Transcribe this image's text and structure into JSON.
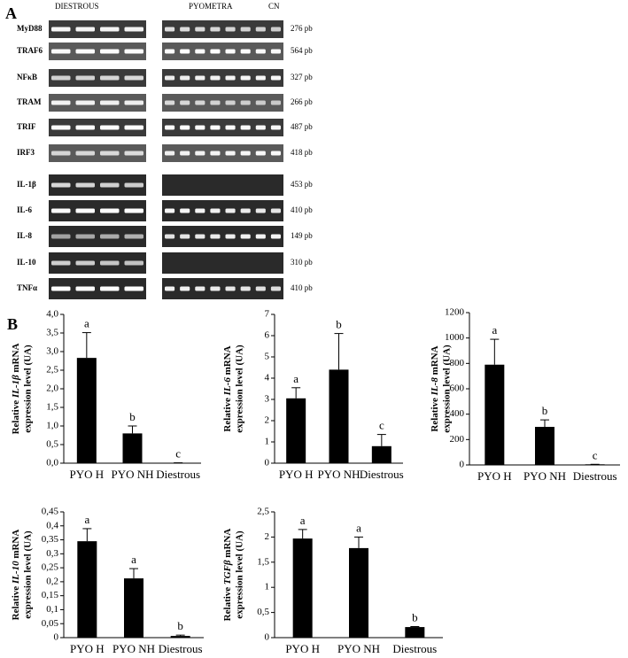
{
  "panels": {
    "a": "A",
    "b": "B"
  },
  "gel": {
    "groups": [
      "DIESTROUS",
      "PYOMETRA",
      "CN"
    ],
    "rows": [
      {
        "gene": "MyD88",
        "size": "276 pb"
      },
      {
        "gene": "TRAF6",
        "size": "564 pb"
      },
      {
        "gene": "NFκB",
        "size": "327 pb"
      },
      {
        "gene": "TRAM",
        "size": "266 pb"
      },
      {
        "gene": "TRIF",
        "size": "487 pb"
      },
      {
        "gene": "IRF3",
        "size": "418 pb"
      },
      {
        "gene": "IL-1β",
        "size": "453 pb"
      },
      {
        "gene": "IL-6",
        "size": "410 pb"
      },
      {
        "gene": "IL-8",
        "size": "149 pb"
      },
      {
        "gene": "IL-10",
        "size": "310 pb"
      },
      {
        "gene": "TNFα",
        "size": "410 pb"
      }
    ]
  },
  "chart_data": [
    {
      "type": "bar",
      "ylabel": {
        "pre": "Relative ",
        "gene": "IL-1β",
        "post": " mRNA",
        "line2": "expression level (UA)"
      },
      "categories": [
        "PYO H",
        "PYO NH",
        "Diestrous"
      ],
      "values": [
        2.83,
        0.8,
        0.01
      ],
      "errors": [
        0.68,
        0.2,
        0
      ],
      "annotations": [
        "a",
        "b",
        "c"
      ],
      "color": "#000000",
      "ylim": [
        0,
        4
      ],
      "yticks": [
        {
          "value": 0,
          "label": "0,0"
        },
        {
          "value": 0.5,
          "label": "0,5"
        },
        {
          "value": 1,
          "label": "1,0"
        },
        {
          "value": 1.5,
          "label": "1,5"
        },
        {
          "value": 2,
          "label": "2,0"
        },
        {
          "value": 2.5,
          "label": "2,5"
        },
        {
          "value": 3,
          "label": "3,0"
        },
        {
          "value": 3.5,
          "label": "3,5"
        },
        {
          "value": 4,
          "label": "4,0"
        }
      ]
    },
    {
      "type": "bar",
      "ylabel": {
        "pre": "Relative ",
        "gene": "IL-6",
        "post": " mRNA",
        "line2": "expression level (UA)"
      },
      "categories": [
        "PYO H",
        "PYO NH",
        "Diestrous"
      ],
      "values": [
        3.05,
        4.4,
        0.8
      ],
      "errors": [
        0.5,
        1.7,
        0.55
      ],
      "annotations": [
        "a",
        "b",
        "c"
      ],
      "color": "#000000",
      "ylim": [
        0,
        7
      ],
      "yticks": [
        0,
        1,
        2,
        3,
        4,
        5,
        6,
        7
      ]
    },
    {
      "type": "bar",
      "ylabel": {
        "pre": "Relative ",
        "gene": "IL-8",
        "post": " mRNA",
        "line2": "expression level (UA)"
      },
      "categories": [
        "PYO H",
        "PYO NH",
        "Diestrous"
      ],
      "values": [
        790,
        300,
        5
      ],
      "errors": [
        200,
        55,
        0
      ],
      "annotations": [
        "a",
        "b",
        "c"
      ],
      "color": "#000000",
      "ylim": [
        0,
        1200
      ],
      "yticks": [
        0,
        200,
        400,
        600,
        800,
        1000,
        1200
      ]
    },
    {
      "type": "bar",
      "ylabel": {
        "pre": "Relative ",
        "gene": "IL-10",
        "post": " mRNA",
        "line2": "expression level (UA)"
      },
      "categories": [
        "PYO H",
        "PYO NH",
        "Diestrous"
      ],
      "values": [
        0.345,
        0.212,
        0.006
      ],
      "errors": [
        0.045,
        0.035,
        0.003
      ],
      "annotations": [
        "a",
        "a",
        "b"
      ],
      "color": "#000000",
      "ylim": [
        0,
        0.45
      ],
      "yticks": [
        0,
        {
          "value": 0.05,
          "label": "0,05"
        },
        {
          "value": 0.1,
          "label": "0,1"
        },
        {
          "value": 0.15,
          "label": "0,15"
        },
        {
          "value": 0.2,
          "label": "0,2"
        },
        {
          "value": 0.25,
          "label": "0,25"
        },
        {
          "value": 0.3,
          "label": "0,3"
        },
        {
          "value": 0.35,
          "label": "0,35"
        },
        {
          "value": 0.4,
          "label": "0,4"
        },
        {
          "value": 0.45,
          "label": "0,45"
        }
      ]
    },
    {
      "type": "bar",
      "ylabel": {
        "pre": "Relative ",
        "gene": "TGFβ",
        "post": " mRNA",
        "line2": "expression level (UA)"
      },
      "categories": [
        "PYO H",
        "PYO NH",
        "Diestrous"
      ],
      "values": [
        1.97,
        1.78,
        0.21
      ],
      "errors": [
        0.18,
        0.22,
        0.01
      ],
      "annotations": [
        "a",
        "a",
        "b"
      ],
      "color": "#000000",
      "ylim": [
        0,
        2.5
      ],
      "yticks": [
        0,
        {
          "value": 0.5,
          "label": "0,5"
        },
        1,
        {
          "value": 1.5,
          "label": "1,5"
        },
        2,
        {
          "value": 2.5,
          "label": "2,5"
        }
      ]
    }
  ]
}
